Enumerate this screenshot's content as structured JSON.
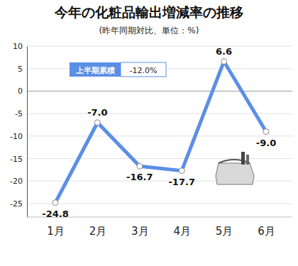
{
  "chart_data": {
    "type": "line",
    "title": "今年の化粧品輸出増減率の推移",
    "subtitle": "(昨年同期対比、単位：%)",
    "annotations": [
      "上半期累積",
      "-12.0%"
    ],
    "categories": [
      "1月",
      "2月",
      "3月",
      "4月",
      "5月",
      "6月"
    ],
    "values": [
      -24.8,
      -7.0,
      -16.7,
      -17.7,
      6.6,
      -9.0
    ],
    "value_labels": [
      "-24.8",
      "-7.0",
      "-16.7",
      "-17.7",
      "6.6",
      "-9.0"
    ],
    "color": "#5b8ee6",
    "marker": "circle",
    "data_labels": true,
    "grid": true,
    "ylim": [
      -28,
      10
    ],
    "yticks": [
      10,
      5,
      0,
      -5,
      -10,
      -15,
      -20,
      -25
    ]
  }
}
